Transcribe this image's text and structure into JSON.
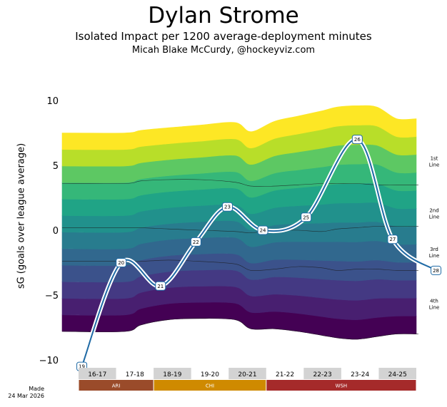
{
  "chart_data": {
    "type": "area",
    "title": "Dylan Strome",
    "subtitle": "Isolated Impact per 1200 average-deployment minutes",
    "credit": "Micah Blake McCurdy, @hockeyviz.com",
    "ylabel": "sG (goals over league average)",
    "ylim": [
      -11,
      11
    ],
    "yticks": [
      10,
      5,
      0,
      -5,
      -10
    ],
    "made_line1": "Made",
    "made_line2": "24 Mar 2026",
    "seasons": [
      "16-17",
      "17-18",
      "18-19",
      "19-20",
      "20-21",
      "21-22",
      "22-23",
      "23-24",
      "24-25"
    ],
    "season_shaded": [
      true,
      false,
      true,
      false,
      true,
      false,
      true,
      false,
      true
    ],
    "teams": [
      {
        "name": "ARI",
        "from": 0,
        "to": 2,
        "color": "#9a4b2a"
      },
      {
        "name": "CHI",
        "from": 2,
        "to": 5,
        "color": "#cf8a00"
      },
      {
        "name": "WSH",
        "from": 5,
        "to": 9,
        "color": "#a52a2a"
      }
    ],
    "deployment_labels": [
      {
        "text": "1st Line",
        "y": 5.3
      },
      {
        "text": "2nd Line",
        "y": 1.3
      },
      {
        "text": "3rd Line",
        "y": -1.7
      },
      {
        "text": "4th Line",
        "y": -5.7
      }
    ],
    "band_colors": [
      "#440154",
      "#481f70",
      "#443983",
      "#3b528b",
      "#31688e",
      "#287c8e",
      "#21918c",
      "#20a486",
      "#35b779",
      "#5dc863",
      "#b8de29",
      "#fde725"
    ],
    "band_count_per_line": 3,
    "band_bottom": [
      -7.8,
      -7.8,
      -7.3,
      -6.9,
      -6.8,
      -6.9,
      -7.6,
      -7.6,
      -7.8,
      -8.1,
      -8.3,
      -8.4,
      -8.2,
      -8.0,
      -8.0
    ],
    "band_top": [
      7.5,
      7.5,
      7.7,
      7.9,
      8.1,
      8.3,
      7.6,
      8.4,
      8.8,
      9.2,
      9.5,
      9.6,
      9.5,
      8.6,
      8.6
    ],
    "band_tau_x": [
      0.6,
      1.6,
      2.0,
      2.7,
      3.5,
      4.4,
      4.8,
      5.4,
      6.0,
      6.6,
      7.0,
      7.5,
      8.0,
      8.5,
      9.4
    ],
    "line_boundaries": [
      {
        "name": "1st-2nd",
        "y": [
          3.6,
          3.6,
          3.8,
          3.9,
          3.9,
          3.7,
          3.4,
          3.4,
          3.5,
          3.6,
          3.6,
          3.6,
          3.5,
          3.5,
          3.5
        ]
      },
      {
        "name": "2nd-3rd",
        "y": [
          0.2,
          0.2,
          0.2,
          0.1,
          0.0,
          -0.1,
          -0.2,
          0.0,
          0.0,
          -0.1,
          0.1,
          0.2,
          0.3,
          0.3,
          0.3
        ]
      },
      {
        "name": "3rd-4th",
        "y": [
          -2.4,
          -2.4,
          -2.4,
          -2.3,
          -2.4,
          -2.6,
          -3.1,
          -3.0,
          -2.8,
          -2.9,
          -3.1,
          -3.0,
          -3.0,
          -3.1,
          -3.1
        ]
      },
      {
        "name": "bottom",
        "y": [
          -7.8,
          -7.8,
          -7.3,
          -6.9,
          -6.8,
          -6.9,
          -7.6,
          -7.6,
          -7.8,
          -8.1,
          -8.3,
          -8.4,
          -8.2,
          -8.0,
          -8.0
        ]
      }
    ],
    "game_points": [
      {
        "label": "19",
        "x": 0.5,
        "y": -10.5
      },
      {
        "label": "20",
        "x": 1.5,
        "y": -2.5
      },
      {
        "label": "21",
        "x": 2.5,
        "y": -4.3
      },
      {
        "label": "22",
        "x": 3.4,
        "y": -0.9
      },
      {
        "label": "23",
        "x": 4.2,
        "y": 1.8
      },
      {
        "label": "24",
        "x": 5.1,
        "y": 0.0
      },
      {
        "label": "25",
        "x": 6.2,
        "y": 1.0
      },
      {
        "label": "26",
        "x": 7.5,
        "y": 7.0
      },
      {
        "label": "27",
        "x": 8.4,
        "y": -0.7
      },
      {
        "label": "28",
        "x": 9.5,
        "y": -3.1
      }
    ]
  }
}
